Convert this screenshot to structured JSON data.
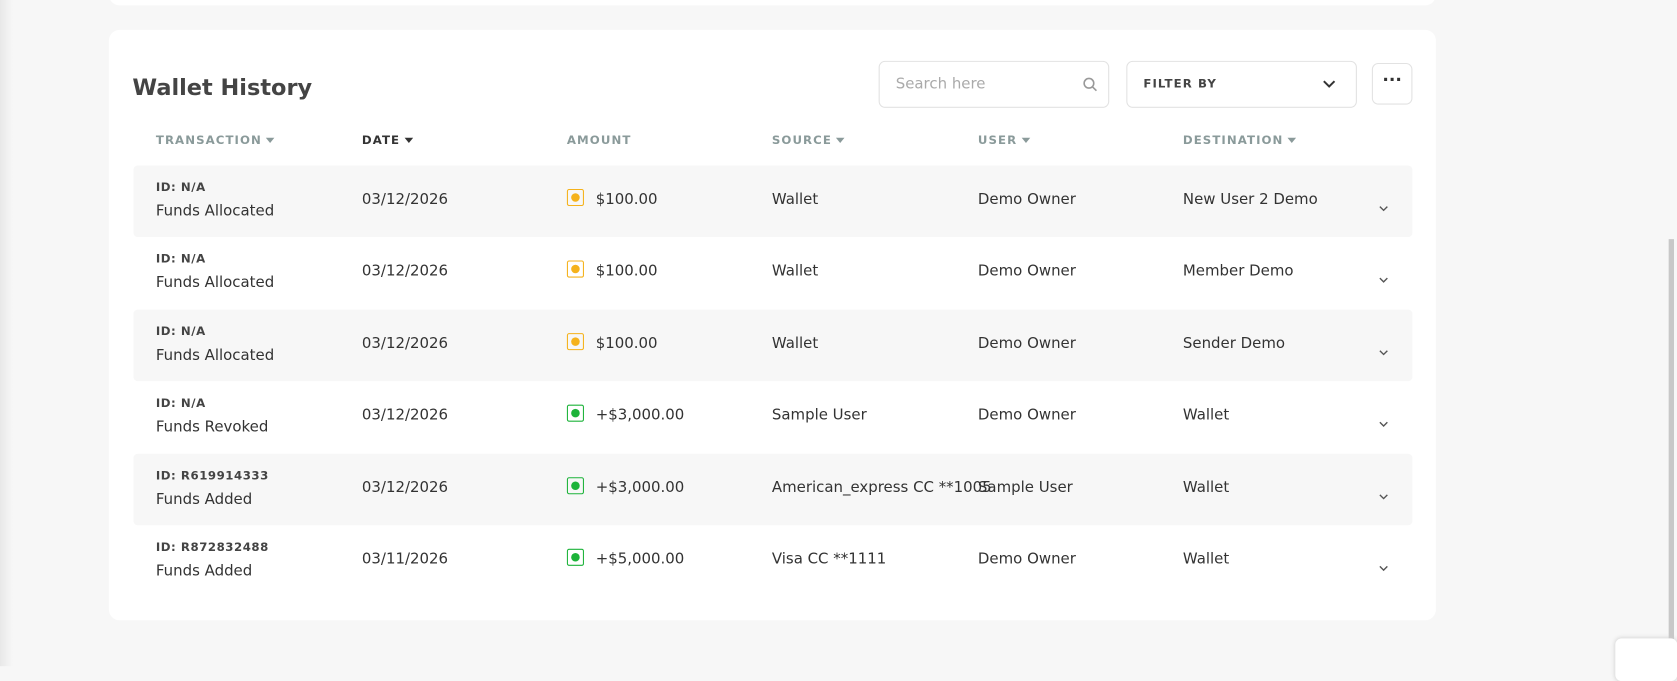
{
  "header": {
    "title": "Wallet History",
    "search_placeholder": "Search here",
    "filter_label": "FILTER BY"
  },
  "table": {
    "columns": [
      {
        "label": "TRANSACTION",
        "sortable": true,
        "active": false
      },
      {
        "label": "DATE",
        "sortable": true,
        "active": true
      },
      {
        "label": "AMOUNT",
        "sortable": false,
        "active": false
      },
      {
        "label": "SOURCE",
        "sortable": true,
        "active": false
      },
      {
        "label": "USER",
        "sortable": true,
        "active": false
      },
      {
        "label": "DESTINATION",
        "sortable": true,
        "active": false
      }
    ],
    "rows": [
      {
        "id": "ID: N/A",
        "type": "Funds Allocated",
        "date": "03/12/2026",
        "amount": "$100.00",
        "icon_color": "#f5b21b",
        "source": "Wallet",
        "user": "Demo Owner",
        "destination": "New User 2 Demo"
      },
      {
        "id": "ID: N/A",
        "type": "Funds Allocated",
        "date": "03/12/2026",
        "amount": "$100.00",
        "icon_color": "#f5b21b",
        "source": "Wallet",
        "user": "Demo Owner",
        "destination": "Member Demo"
      },
      {
        "id": "ID: N/A",
        "type": "Funds Allocated",
        "date": "03/12/2026",
        "amount": "$100.00",
        "icon_color": "#f5b21b",
        "source": "Wallet",
        "user": "Demo Owner",
        "destination": "Sender Demo"
      },
      {
        "id": "ID: N/A",
        "type": "Funds Revoked",
        "date": "03/12/2026",
        "amount": "+$3,000.00",
        "icon_color": "#1db33a",
        "source": "Sample User",
        "user": "Demo Owner",
        "destination": "Wallet"
      },
      {
        "id": "ID: R619914333",
        "type": "Funds Added",
        "date": "03/12/2026",
        "amount": "+$3,000.00",
        "icon_color": "#1db33a",
        "source": "American_express CC **1005",
        "user": "Sample User",
        "destination": "Wallet"
      },
      {
        "id": "ID: R872832488",
        "type": "Funds Added",
        "date": "03/11/2026",
        "amount": "+$5,000.00",
        "icon_color": "#1db33a",
        "source": "Visa CC **1111",
        "user": "Demo Owner",
        "destination": "Wallet"
      }
    ]
  }
}
